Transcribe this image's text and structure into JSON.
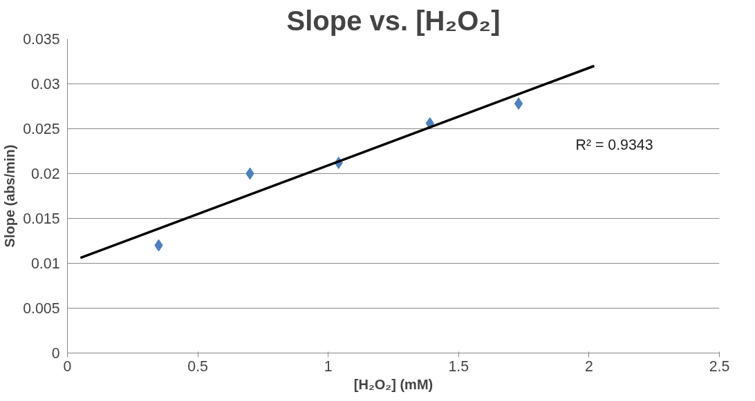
{
  "chart_data": {
    "type": "scatter",
    "title": "Slope vs. [H₂O₂]",
    "xlabel": "[H₂O₂] (mM)",
    "ylabel": "Slope (abs/min)",
    "x": [
      0.35,
      0.7,
      1.04,
      1.39,
      1.73
    ],
    "series": [
      {
        "color": "#4f81bd",
        "marker": "diamond",
        "values": [
          0.012,
          0.02,
          0.0212,
          0.0256,
          0.0278
        ]
      },
      {
        "type": "line",
        "color": "#000000",
        "line_style": "solid",
        "x": [
          0.05,
          2.02
        ],
        "values": [
          0.0106,
          0.032
        ]
      }
    ],
    "xlim": [
      0,
      2.5
    ],
    "xticks": [
      0,
      0.5,
      1,
      1.5,
      2,
      2.5
    ],
    "ylim": [
      0,
      0.035
    ],
    "yticks": [
      0,
      0.005,
      0.01,
      0.015,
      0.02,
      0.025,
      0.03,
      0.035
    ],
    "grid": "y",
    "annotations": [
      "R² = 0.9343"
    ]
  }
}
